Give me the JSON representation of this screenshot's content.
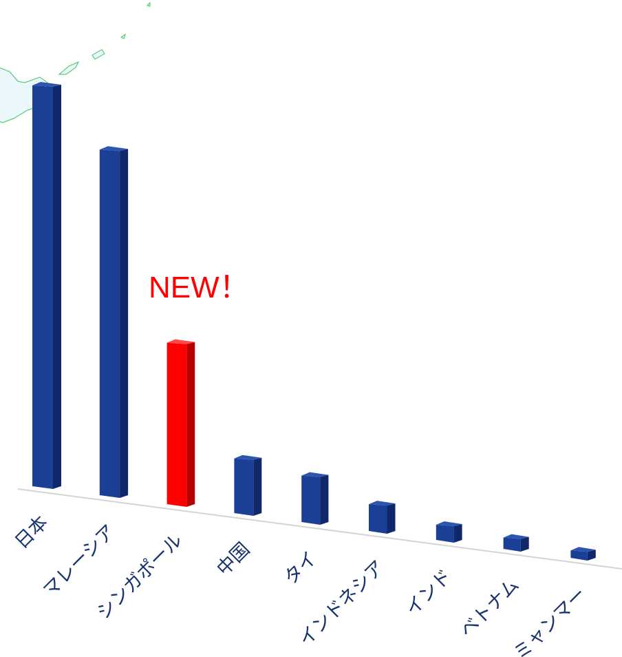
{
  "chart_data": {
    "type": "bar",
    "title": "",
    "xlabel": "",
    "ylabel": "",
    "categories": [
      "日本",
      "マレーシア",
      "シンガポール",
      "中国",
      "タイ",
      "インドネシア",
      "インド",
      "ベトナム",
      "ミャンマー"
    ],
    "values": [
      100,
      87,
      41,
      14,
      12,
      7,
      4,
      3,
      2
    ],
    "ylim": [
      0,
      100
    ],
    "grid": false,
    "legend": "none",
    "highlight_index": 2,
    "annotation": {
      "text": "NEW！",
      "color": "#ff0000"
    },
    "colors": {
      "bar_front": "#1b3f95",
      "bar_side": "#10286a",
      "bar_top": "#2d55b0",
      "highlight_front": "#ff0000",
      "highlight_side": "#b80000",
      "highlight_top": "#ff4a4a",
      "label": "#17326e",
      "baseline": "#d4d4d4",
      "map_fill": "#eaf7fb",
      "map_stroke": "#3cc35a"
    }
  }
}
